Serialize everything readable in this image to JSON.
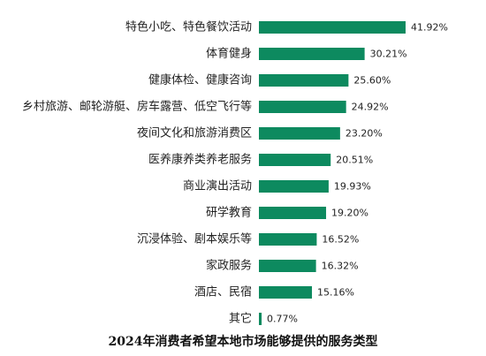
{
  "chart_data": {
    "type": "bar",
    "orientation": "horizontal",
    "title": "2024年消费者希望本地市场能够提供的服务类型",
    "categories": [
      "特色小吃、特色餐饮活动",
      "体育健身",
      "健康体检、健康咨询",
      "乡村旅游、邮轮游艇、房车露营、低空飞行等",
      "夜间文化和旅游消费区",
      "医养康养类养老服务",
      "商业演出活动",
      "研学教育",
      "沉浸体验、剧本娱乐等",
      "家政服务",
      "酒店、民宿",
      "其它"
    ],
    "values": [
      41.92,
      30.21,
      25.6,
      24.92,
      23.2,
      20.51,
      19.93,
      19.2,
      16.52,
      16.32,
      15.16,
      0.77
    ],
    "value_labels": [
      "41.92%",
      "30.21%",
      "25.60%",
      "24.92%",
      "23.20%",
      "20.51%",
      "19.93%",
      "19.20%",
      "16.52%",
      "16.32%",
      "15.16%",
      "0.77%"
    ],
    "unit": "%",
    "xlim": [
      0,
      41.92
    ],
    "bar_color": "#0d8a5f",
    "grid": false,
    "legend": "none"
  }
}
